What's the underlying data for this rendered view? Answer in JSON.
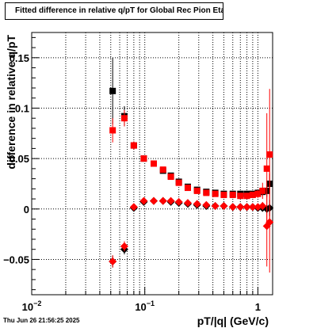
{
  "title": "Fitted difference in relative q/pT for Global Rec Pion EtapT",
  "timestamp": "Thu Jun 26 21:56:25 2025",
  "chart_data": {
    "type": "scatter",
    "title": "Fitted difference in relative q/pT for Global Rec Pion EtapT",
    "xlabel": "pT/|q| (GeV/c)",
    "ylabel": "difference in relative q/pT",
    "x_scale": "log",
    "xlim": [
      0.01,
      1.35
    ],
    "ylim": [
      -0.085,
      0.175
    ],
    "grid": true,
    "x_ticks": [
      {
        "value": 0.01,
        "base": "10",
        "exp": "−2"
      },
      {
        "value": 0.1,
        "base": "10",
        "exp": "−1"
      },
      {
        "value": 1,
        "label": "1"
      }
    ],
    "y_ticks": [
      {
        "value": -0.05,
        "label": "−0.05"
      },
      {
        "value": 0,
        "label": "0"
      },
      {
        "value": 0.05,
        "label": "0.05"
      },
      {
        "value": 0.1,
        "label": "0.1"
      },
      {
        "value": 0.15,
        "label": "0.15"
      }
    ],
    "series": [
      {
        "color": "#000000",
        "marker": "square",
        "x": [
          0.052,
          0.066,
          0.08,
          0.098,
          0.12,
          0.145,
          0.17,
          0.2,
          0.24,
          0.29,
          0.35,
          0.42,
          0.5,
          0.6,
          0.7,
          0.8,
          0.9,
          1.0,
          1.1,
          1.2,
          1.27
        ],
        "y": [
          0.117,
          0.092,
          0.063,
          0.05,
          0.045,
          0.038,
          0.033,
          0.027,
          0.022,
          0.019,
          0.017,
          0.016,
          0.015,
          0.015,
          0.015,
          0.015,
          0.015,
          0.016,
          0.017,
          0.018,
          0.025
        ],
        "err": [
          0.033,
          0.01,
          0.004,
          0.003,
          0.002,
          0.002,
          0.002,
          0.002,
          0.002,
          0.002,
          0.002,
          0.002,
          0.002,
          0.002,
          0.002,
          0.002,
          0.003,
          0.003,
          0.004,
          0.006,
          0.01
        ]
      },
      {
        "color": "#ff0000",
        "marker": "square",
        "x": [
          0.052,
          0.066,
          0.08,
          0.098,
          0.12,
          0.145,
          0.17,
          0.2,
          0.24,
          0.29,
          0.35,
          0.42,
          0.5,
          0.6,
          0.7,
          0.8,
          0.9,
          1.0,
          1.1,
          1.2,
          1.27
        ],
        "y": [
          0.078,
          0.09,
          0.063,
          0.05,
          0.045,
          0.039,
          0.032,
          0.026,
          0.021,
          0.018,
          0.016,
          0.015,
          0.014,
          0.014,
          0.013,
          0.013,
          0.014,
          0.015,
          0.018,
          0.04,
          0.054
        ],
        "err": [
          0.012,
          0.008,
          0.004,
          0.003,
          0.002,
          0.002,
          0.002,
          0.002,
          0.002,
          0.002,
          0.002,
          0.002,
          0.002,
          0.002,
          0.002,
          0.002,
          0.003,
          0.004,
          0.008,
          0.055,
          0.065
        ]
      },
      {
        "color": "#000000",
        "marker": "diamond",
        "x": [
          0.052,
          0.066,
          0.08,
          0.098,
          0.12,
          0.145,
          0.17,
          0.2,
          0.24,
          0.29,
          0.35,
          0.42,
          0.5,
          0.6,
          0.7,
          0.8,
          0.9,
          1.0,
          1.1,
          1.2,
          1.27
        ],
        "y": [
          -0.052,
          -0.04,
          0.001,
          0.007,
          0.008,
          0.008,
          0.007,
          0.006,
          0.005,
          0.004,
          0.003,
          0.003,
          0.003,
          0.002,
          0.002,
          0.002,
          0.002,
          0.001,
          0.001,
          0.0,
          0.001
        ],
        "err": [
          0.006,
          0.005,
          0.003,
          0.002,
          0.002,
          0.002,
          0.002,
          0.002,
          0.002,
          0.002,
          0.002,
          0.002,
          0.002,
          0.002,
          0.002,
          0.002,
          0.002,
          0.002,
          0.003,
          0.004,
          0.008
        ]
      },
      {
        "color": "#ff0000",
        "marker": "diamond",
        "x": [
          0.052,
          0.066,
          0.08,
          0.098,
          0.12,
          0.145,
          0.17,
          0.2,
          0.24,
          0.29,
          0.35,
          0.42,
          0.5,
          0.6,
          0.7,
          0.8,
          0.9,
          1.0,
          1.1,
          1.2,
          1.27
        ],
        "y": [
          -0.052,
          -0.037,
          0.002,
          0.008,
          0.008,
          0.008,
          0.008,
          0.007,
          0.006,
          0.005,
          0.004,
          0.003,
          0.003,
          0.002,
          0.002,
          0.002,
          0.002,
          0.002,
          0.003,
          -0.017,
          -0.013
        ],
        "err": [
          0.006,
          0.005,
          0.003,
          0.002,
          0.002,
          0.002,
          0.002,
          0.002,
          0.002,
          0.002,
          0.002,
          0.002,
          0.002,
          0.002,
          0.002,
          0.002,
          0.002,
          0.003,
          0.004,
          0.04,
          0.05
        ]
      }
    ]
  }
}
